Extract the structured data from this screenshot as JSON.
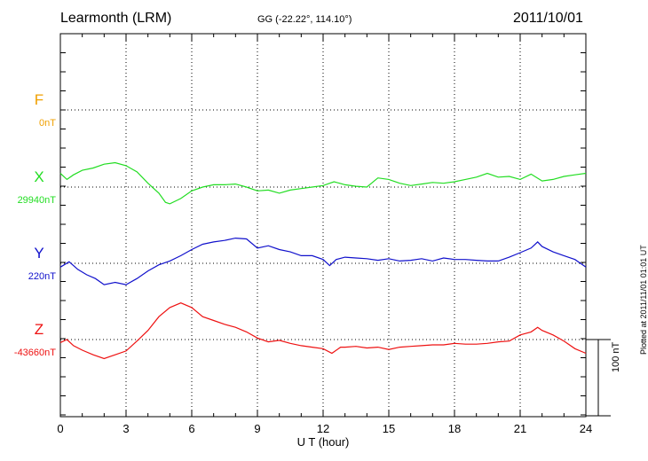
{
  "header": {
    "station": "Learmonth (LRM)",
    "coords": "GG (-22.22°, 114.10°)",
    "date": "2011/10/01"
  },
  "footer": {
    "plotted": "Plotted at 2011/11/01 01:01 UT",
    "scale_label": "100 nT"
  },
  "colors": {
    "F": "#f0a000",
    "X": "#22dd22",
    "Y": "#1111cc",
    "Z": "#ee1111"
  },
  "chart_data": {
    "type": "line",
    "xlabel": "U T (hour)",
    "xlim": [
      0,
      24
    ],
    "xticks": [
      0,
      3,
      6,
      9,
      12,
      15,
      18,
      21,
      24
    ],
    "scale_nT": 100,
    "series": [
      {
        "name": "F",
        "baseline_label": "0nT",
        "points": []
      },
      {
        "name": "X",
        "baseline_label": "29940nT",
        "points": [
          [
            0,
            18
          ],
          [
            0.3,
            10
          ],
          [
            0.6,
            16
          ],
          [
            1,
            22
          ],
          [
            1.5,
            25
          ],
          [
            2,
            30
          ],
          [
            2.5,
            32
          ],
          [
            3,
            28
          ],
          [
            3.5,
            20
          ],
          [
            4,
            5
          ],
          [
            4.5,
            -8
          ],
          [
            4.8,
            -20
          ],
          [
            5,
            -22
          ],
          [
            5.5,
            -15
          ],
          [
            6,
            -5
          ],
          [
            6.5,
            0
          ],
          [
            7,
            3
          ],
          [
            7.5,
            3
          ],
          [
            8,
            4
          ],
          [
            8.5,
            0
          ],
          [
            9,
            -5
          ],
          [
            9.5,
            -4
          ],
          [
            10,
            -8
          ],
          [
            10.5,
            -4
          ],
          [
            11,
            -2
          ],
          [
            11.5,
            0
          ],
          [
            12,
            2
          ],
          [
            12.5,
            7
          ],
          [
            13,
            3
          ],
          [
            13.5,
            1
          ],
          [
            14,
            0
          ],
          [
            14.5,
            12
          ],
          [
            15,
            10
          ],
          [
            15.5,
            5
          ],
          [
            16,
            2
          ],
          [
            16.5,
            4
          ],
          [
            17,
            6
          ],
          [
            17.5,
            5
          ],
          [
            18,
            7
          ],
          [
            18.5,
            10
          ],
          [
            19,
            13
          ],
          [
            19.5,
            18
          ],
          [
            20,
            13
          ],
          [
            20.5,
            14
          ],
          [
            21,
            10
          ],
          [
            21.5,
            17
          ],
          [
            22,
            8
          ],
          [
            22.5,
            10
          ],
          [
            23,
            14
          ],
          [
            23.5,
            16
          ],
          [
            24,
            18
          ]
        ]
      },
      {
        "name": "Y",
        "baseline_label": "220nT",
        "points": [
          [
            0,
            -5
          ],
          [
            0.4,
            2
          ],
          [
            0.8,
            -8
          ],
          [
            1.2,
            -15
          ],
          [
            1.6,
            -20
          ],
          [
            2,
            -28
          ],
          [
            2.5,
            -25
          ],
          [
            3,
            -28
          ],
          [
            3.5,
            -20
          ],
          [
            4,
            -10
          ],
          [
            4.5,
            -2
          ],
          [
            5,
            3
          ],
          [
            5.5,
            10
          ],
          [
            6,
            18
          ],
          [
            6.5,
            25
          ],
          [
            7,
            28
          ],
          [
            7.5,
            30
          ],
          [
            8,
            33
          ],
          [
            8.5,
            32
          ],
          [
            9,
            20
          ],
          [
            9.5,
            23
          ],
          [
            10,
            18
          ],
          [
            10.5,
            15
          ],
          [
            11,
            10
          ],
          [
            11.5,
            10
          ],
          [
            12,
            5
          ],
          [
            12.3,
            -3
          ],
          [
            12.6,
            5
          ],
          [
            13,
            8
          ],
          [
            13.5,
            7
          ],
          [
            14,
            6
          ],
          [
            14.5,
            4
          ],
          [
            15,
            6
          ],
          [
            15.5,
            3
          ],
          [
            16,
            4
          ],
          [
            16.5,
            6
          ],
          [
            17,
            3
          ],
          [
            17.5,
            7
          ],
          [
            18,
            5
          ],
          [
            18.5,
            5
          ],
          [
            19,
            4
          ],
          [
            19.5,
            3
          ],
          [
            20,
            3
          ],
          [
            20.5,
            8
          ],
          [
            21,
            14
          ],
          [
            21.5,
            20
          ],
          [
            21.8,
            28
          ],
          [
            22,
            22
          ],
          [
            22.5,
            15
          ],
          [
            23,
            10
          ],
          [
            23.5,
            5
          ],
          [
            24,
            -5
          ]
        ]
      },
      {
        "name": "Z",
        "baseline_label": "-43660nT",
        "points": [
          [
            0,
            -4
          ],
          [
            0.3,
            0
          ],
          [
            0.6,
            -8
          ],
          [
            1,
            -14
          ],
          [
            1.5,
            -20
          ],
          [
            2,
            -25
          ],
          [
            2.5,
            -20
          ],
          [
            3,
            -15
          ],
          [
            3.5,
            -2
          ],
          [
            4,
            12
          ],
          [
            4.5,
            30
          ],
          [
            5,
            42
          ],
          [
            5.5,
            48
          ],
          [
            6,
            42
          ],
          [
            6.5,
            30
          ],
          [
            7,
            25
          ],
          [
            7.5,
            20
          ],
          [
            8,
            16
          ],
          [
            8.5,
            10
          ],
          [
            9,
            2
          ],
          [
            9.5,
            -3
          ],
          [
            10,
            -1
          ],
          [
            10.5,
            -5
          ],
          [
            11,
            -8
          ],
          [
            11.5,
            -10
          ],
          [
            12,
            -12
          ],
          [
            12.4,
            -18
          ],
          [
            12.8,
            -10
          ],
          [
            13,
            -10
          ],
          [
            13.5,
            -9
          ],
          [
            14,
            -11
          ],
          [
            14.5,
            -10
          ],
          [
            15,
            -13
          ],
          [
            15.5,
            -10
          ],
          [
            16,
            -9
          ],
          [
            16.5,
            -8
          ],
          [
            17,
            -7
          ],
          [
            17.5,
            -7
          ],
          [
            18,
            -5
          ],
          [
            18.5,
            -6
          ],
          [
            19,
            -6
          ],
          [
            19.5,
            -5
          ],
          [
            20,
            -3
          ],
          [
            20.5,
            -2
          ],
          [
            21,
            6
          ],
          [
            21.5,
            10
          ],
          [
            21.8,
            16
          ],
          [
            22,
            12
          ],
          [
            22.5,
            6
          ],
          [
            23,
            -2
          ],
          [
            23.5,
            -12
          ],
          [
            24,
            -18
          ]
        ]
      }
    ]
  }
}
